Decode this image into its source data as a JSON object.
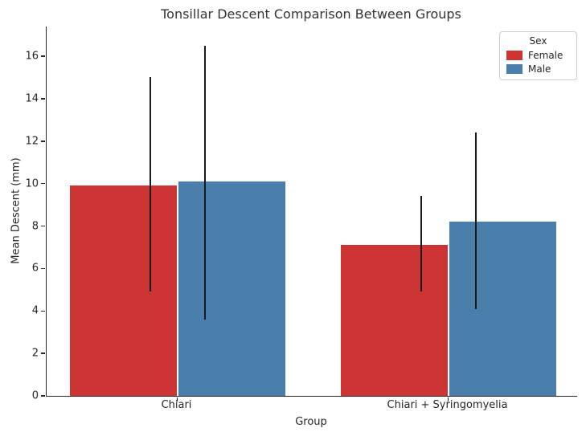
{
  "chart_data": {
    "type": "bar",
    "title": "Tonsillar Descent Comparison Between Groups",
    "xlabel": "Group",
    "ylabel": "Mean Descent (mm)",
    "categories": [
      "Chiari",
      "Chiari + Syringomyelia"
    ],
    "series": [
      {
        "name": "Female",
        "color": "#cc3534",
        "values": [
          9.9,
          7.1
        ],
        "err_low": [
          4.9,
          4.9
        ],
        "err_high": [
          15.0,
          9.4
        ]
      },
      {
        "name": "Male",
        "color": "#4a7fab",
        "values": [
          10.1,
          8.2
        ],
        "err_low": [
          3.6,
          4.1
        ],
        "err_high": [
          16.5,
          12.4
        ]
      }
    ],
    "error_bar_color": "#1a1a1a",
    "legend": {
      "title": "Sex",
      "position": "upper right"
    },
    "y_ticks": [
      "0",
      "2",
      "4",
      "6",
      "8",
      "10",
      "12",
      "14",
      "16"
    ],
    "ylim": [
      0,
      17.4
    ],
    "grid": false
  }
}
